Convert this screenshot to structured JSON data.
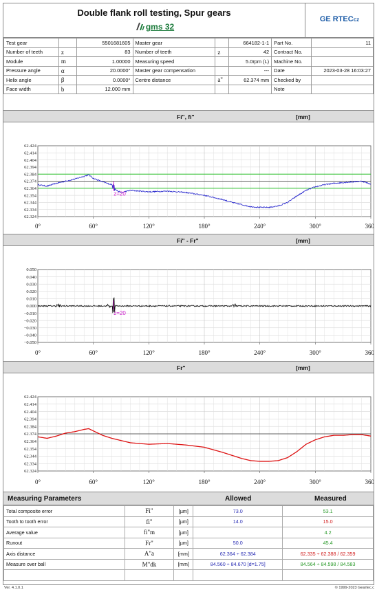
{
  "header": {
    "title": "Double flank roll testing,  Spur gears",
    "product": "gms 32",
    "brand": "GE RTEC",
    "brand_suffix": "cz",
    "colors": {
      "product": "#1a7a3a",
      "brand": "#1a5aa6"
    }
  },
  "info": {
    "rows": [
      [
        "Test gear",
        "",
        "5501681605",
        "Master gear",
        "",
        "664182-1-1",
        "Part No.",
        "11"
      ],
      [
        "Number of teeth",
        "z",
        "83",
        "Number of teeth",
        "z",
        "42",
        "Contract No.",
        ""
      ],
      [
        "Module",
        "m",
        "1.00000",
        "Measuring speed",
        "",
        "5.0rpm  (L)",
        "Machine No.",
        ""
      ],
      [
        "Pressure angle",
        "α",
        "20.0000°",
        "Master gear  compensation",
        "",
        "---",
        "Date",
        "2023-03-28 16:03:27"
      ],
      [
        "Helix angle",
        "β",
        "0.0000°",
        "Centre distance",
        "a\"",
        "62.374 mm",
        "Checked by",
        ""
      ],
      [
        "Face width",
        "b",
        "12.000 mm",
        "",
        "",
        "",
        "Note",
        ""
      ]
    ]
  },
  "sections": [
    {
      "label": "Fi\", fi\"",
      "unit": "[mm]"
    },
    {
      "label": "Fi\" - Fr\"",
      "unit": "[mm]"
    },
    {
      "label": "Fr\"",
      "unit": "[mm]"
    }
  ],
  "chart_data": [
    {
      "type": "line",
      "title": "Fi\", fi\"",
      "ylabel": "[mm]",
      "x_ticks": [
        "0°",
        "60°",
        "120°",
        "180°",
        "240°",
        "300°",
        "360°"
      ],
      "y_ticks": [
        "62.424",
        "62.414",
        "62.404",
        "62.394",
        "62.384",
        "62.374",
        "62.364",
        "62.354",
        "62.344",
        "62.334",
        "62.324"
      ],
      "xlim": [
        0,
        360
      ],
      "ylim": [
        62.324,
        62.424
      ],
      "reference_lines": {
        "tolerance": [
          62.364,
          62.384
        ],
        "nominal": 62.374
      },
      "marker": {
        "x": 82,
        "label": "z=20"
      },
      "series": [
        {
          "color": "#2222cc",
          "x": [
            0,
            10,
            20,
            30,
            40,
            50,
            55,
            60,
            70,
            80,
            85,
            90,
            100,
            120,
            140,
            160,
            180,
            200,
            210,
            220,
            230,
            240,
            250,
            260,
            270,
            280,
            290,
            300,
            310,
            320,
            330,
            340,
            350,
            360
          ],
          "y": [
            62.369,
            62.367,
            62.371,
            62.374,
            62.377,
            62.381,
            62.383,
            62.378,
            62.373,
            62.369,
            62.361,
            62.358,
            62.361,
            62.359,
            62.36,
            62.358,
            62.354,
            62.348,
            62.344,
            62.341,
            62.338,
            62.337,
            62.337,
            62.339,
            62.344,
            62.353,
            62.361,
            62.366,
            62.369,
            62.371,
            62.372,
            62.373,
            62.374,
            62.37
          ]
        }
      ]
    },
    {
      "type": "line",
      "title": "Fi\" - Fr\"",
      "ylabel": "[mm]",
      "x_ticks": [
        "0°",
        "60°",
        "120°",
        "180°",
        "240°",
        "300°",
        "360°"
      ],
      "y_ticks": [
        "0.050",
        "0.040",
        "0.030",
        "0.020",
        "0.010",
        "0.000",
        "−0.010",
        "−0.020",
        "−0.030",
        "−0.040",
        "−0.050"
      ],
      "xlim": [
        0,
        360
      ],
      "ylim": [
        -0.05,
        0.05
      ],
      "marker": {
        "x": 82,
        "label": "z=20"
      },
      "series": [
        {
          "color": "#111111",
          "x": [
            0,
            360
          ],
          "y": [
            0.0,
            0.0
          ]
        }
      ]
    },
    {
      "type": "line",
      "title": "Fr\"",
      "ylabel": "[mm]",
      "x_ticks": [
        "0°",
        "60°",
        "120°",
        "180°",
        "240°",
        "300°",
        "360°"
      ],
      "y_ticks": [
        "62.424",
        "62.414",
        "62.404",
        "62.394",
        "62.384",
        "62.374",
        "62.364",
        "62.354",
        "62.344",
        "62.334",
        "62.324"
      ],
      "xlim": [
        0,
        360
      ],
      "ylim": [
        62.324,
        62.424
      ],
      "reference_lines": {
        "nominal": 62.374
      },
      "series": [
        {
          "color": "#dd1111",
          "x": [
            0,
            10,
            20,
            30,
            40,
            50,
            55,
            60,
            70,
            80,
            90,
            100,
            120,
            140,
            160,
            180,
            200,
            210,
            220,
            230,
            240,
            250,
            260,
            270,
            280,
            290,
            300,
            310,
            320,
            330,
            340,
            350,
            360
          ],
          "y": [
            62.37,
            62.368,
            62.371,
            62.375,
            62.377,
            62.38,
            62.381,
            62.378,
            62.372,
            62.368,
            62.365,
            62.362,
            62.36,
            62.361,
            62.359,
            62.356,
            62.349,
            62.345,
            62.341,
            62.338,
            62.337,
            62.337,
            62.338,
            62.342,
            62.35,
            62.36,
            62.366,
            62.37,
            62.372,
            62.372,
            62.373,
            62.373,
            62.371
          ]
        }
      ]
    }
  ],
  "measuring": {
    "title": "Measuring Parameters",
    "allowed_label": "Allowed",
    "measured_label": "Measured",
    "rows": [
      {
        "name": "Total composite error",
        "sym": "Fi\"",
        "unit": "[µm]",
        "allowed": "73.0",
        "measured": "53.1",
        "status": "green"
      },
      {
        "name": "Tooth to tooth error",
        "sym": "fi\"",
        "unit": "[µm]",
        "allowed": "14.0",
        "measured": "15.0",
        "status": "red"
      },
      {
        "name": "Average value",
        "sym": "fi\"m",
        "unit": "[µm]",
        "allowed": "",
        "measured": "4.2",
        "status": "green"
      },
      {
        "name": "Runout",
        "sym": "Fr\"",
        "unit": "[µm]",
        "allowed": "50.0",
        "measured": "45.4",
        "status": "green"
      },
      {
        "name": "Axis distance",
        "sym": "A\"a",
        "unit": "[mm]",
        "allowed": "62.364 ÷ 62.384",
        "measured": "62.335 ÷ 62.388 / 62.359",
        "status": "red"
      },
      {
        "name": "Measure over ball",
        "sym": "M\"dk",
        "unit": "[mm]",
        "allowed": "84.560 ÷ 84.670 [d=1.75]",
        "measured": "84.564 ÷ 84.598 / 84.583",
        "status": "green"
      }
    ]
  },
  "footer": {
    "version": "Ver. 4.1.0.1",
    "copyright": "© 1999-2023 Geartec.c"
  }
}
